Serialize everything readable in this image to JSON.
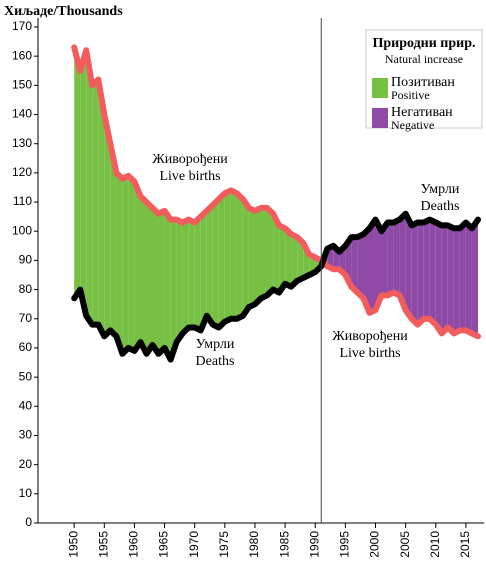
{
  "chart_data": {
    "type": "line",
    "y_label": "Хиљаде/Thousands",
    "xlim": [
      1944,
      2018
    ],
    "ylim": [
      0,
      170
    ],
    "yticks": [
      0,
      10,
      20,
      30,
      40,
      50,
      60,
      70,
      80,
      90,
      100,
      110,
      120,
      130,
      140,
      150,
      160,
      170
    ],
    "xticks": [
      1950,
      1955,
      1960,
      1965,
      1970,
      1975,
      1980,
      1985,
      1990,
      1995,
      2000,
      2005,
      2010,
      2015
    ],
    "vline": 1991,
    "x": [
      1950,
      1951,
      1952,
      1953,
      1954,
      1955,
      1956,
      1957,
      1958,
      1959,
      1960,
      1961,
      1962,
      1963,
      1964,
      1965,
      1966,
      1967,
      1968,
      1969,
      1970,
      1971,
      1972,
      1973,
      1974,
      1975,
      1976,
      1977,
      1978,
      1979,
      1980,
      1981,
      1982,
      1983,
      1984,
      1985,
      1986,
      1987,
      1988,
      1989,
      1990,
      1991,
      1992,
      1993,
      1994,
      1995,
      1996,
      1997,
      1998,
      1999,
      2000,
      2001,
      2002,
      2003,
      2004,
      2005,
      2006,
      2007,
      2008,
      2009,
      2010,
      2011,
      2012,
      2013,
      2014,
      2015,
      2016,
      2017
    ],
    "series": [
      {
        "name": "Живорођени",
        "color": "#f25c5c",
        "values": [
          163,
          155,
          162,
          150,
          152,
          140,
          130,
          120,
          118,
          119,
          117,
          112,
          110,
          108,
          106,
          107,
          104,
          104,
          103,
          104,
          103,
          105,
          107,
          109,
          111,
          113,
          114,
          113,
          111,
          108,
          107,
          108,
          108,
          106,
          102,
          101,
          99,
          98,
          96,
          92,
          91,
          90,
          88,
          87,
          87,
          85,
          81,
          79,
          77,
          72,
          73,
          78,
          78,
          79,
          78,
          73,
          70,
          68,
          70,
          70,
          68,
          65,
          67,
          65,
          66,
          66,
          65,
          64
        ]
      },
      {
        "name": "Умрли",
        "color": "#000000",
        "values": [
          77,
          80,
          71,
          68,
          68,
          64,
          66,
          64,
          58,
          60,
          59,
          62,
          58,
          61,
          58,
          60,
          56,
          62,
          65,
          67,
          67,
          66,
          71,
          68,
          67,
          69,
          70,
          70,
          71,
          74,
          75,
          77,
          78,
          80,
          79,
          82,
          81,
          83,
          84,
          85,
          86,
          88,
          94,
          95,
          93,
          95,
          98,
          98,
          99,
          101,
          104,
          100,
          103,
          103,
          104,
          106,
          102,
          103,
          103,
          104,
          103,
          102,
          102,
          101,
          101,
          103,
          101,
          104
        ]
      }
    ],
    "legend": {
      "title": [
        "Природни прир.",
        "Natural increase"
      ],
      "entries": [
        {
          "label": "Позитиван",
          "sublabel": "Positive",
          "color": "#77c043"
        },
        {
          "label": "Негативан",
          "sublabel": "Negative",
          "color": "#8e4aa6"
        }
      ]
    },
    "annotations": [
      {
        "text": "Живорођени",
        "subtext": "Live births"
      },
      {
        "text": "Умрли",
        "subtext": "Deaths"
      },
      {
        "text": "Умрли",
        "subtext": "Deaths"
      },
      {
        "text": "Живорођени",
        "subtext": "Live births"
      }
    ]
  }
}
